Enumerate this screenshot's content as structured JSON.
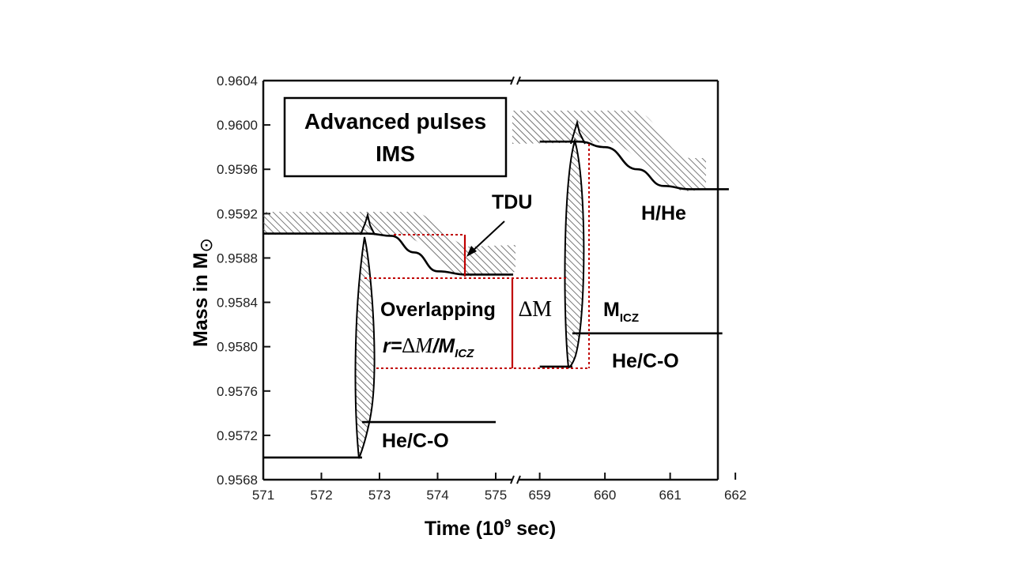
{
  "chart_data": {
    "type": "line",
    "title_box": [
      "Advanced pulses",
      "IMS"
    ],
    "xlabel": "Time (10",
    "xlabel_sup": "9",
    "xlabel_end": " sec)",
    "ylabel": "Mass in M",
    "ylabel_symbol": "⊙",
    "ylim": [
      0.9568,
      0.9604
    ],
    "y_ticks": [
      "0.9604",
      "0.9600",
      "0.9596",
      "0.9592",
      "0.9588",
      "0.9584",
      "0.9580",
      "0.9576",
      "0.9572",
      "0.9568"
    ],
    "x_ticks_left": [
      "571",
      "572",
      "573",
      "574",
      "575"
    ],
    "x_ticks_right": [
      "659",
      "660",
      "661",
      "662"
    ],
    "x_break": "axis break between 575 and 659",
    "series": [
      {
        "name": "H/He boundary (pulse 1)",
        "x": [
          571.0,
          572.3,
          572.8,
          573.2,
          573.6,
          574.0,
          574.5,
          575.3
        ],
        "values": [
          0.95902,
          0.95902,
          0.95902,
          0.959,
          0.95885,
          0.95868,
          0.95865,
          0.95865
        ]
      },
      {
        "name": "H/He boundary (pulse 2)",
        "x": [
          659.0,
          659.6,
          660.0,
          660.5,
          660.9,
          661.3,
          661.9
        ],
        "values": [
          0.95985,
          0.95985,
          0.9598,
          0.9596,
          0.95945,
          0.95942,
          0.95942
        ]
      },
      {
        "name": "He/C-O boundary",
        "x": [
          571.0,
          572.7,
          572.7,
          575.0,
          659.0,
          659.5,
          659.5,
          661.8
        ],
        "values": [
          0.957,
          0.957,
          0.95732,
          0.95732,
          0.95782,
          0.95782,
          0.95812,
          0.95812
        ]
      }
    ],
    "annotations": {
      "tdu": "TDU",
      "h_he": "H/He",
      "he_co_left": "He/C-O",
      "he_co_right": "He/C-O",
      "overlapping": "Overlapping",
      "ratio_prefix": "r=",
      "ratio_delta": "∆M",
      "ratio_slash": "/M",
      "ratio_sub": "ICZ",
      "delta_m": "∆M",
      "m_icz": "M",
      "m_icz_sub": "ICZ"
    },
    "colors": {
      "axis": "#111111",
      "guide": "#c00000",
      "hatch": "#555555",
      "box": "#000000"
    }
  }
}
